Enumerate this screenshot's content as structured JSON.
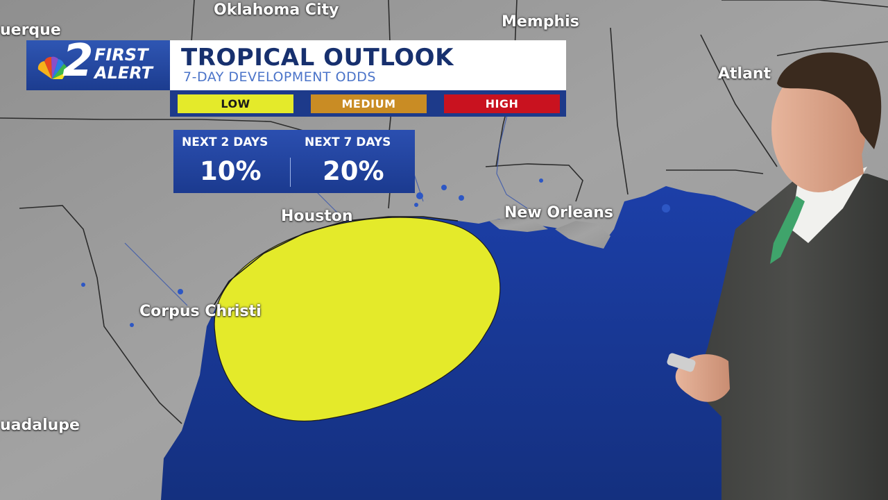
{
  "broadcast": {
    "logo": {
      "number": "2",
      "line1": "FIRST",
      "line2": "ALERT"
    },
    "title": "TROPICAL OUTLOOK",
    "subtitle": "7-DAY DEVELOPMENT ODDS"
  },
  "legend": [
    {
      "label": "LOW",
      "color": "#e4ea2a"
    },
    {
      "label": "MEDIUM",
      "color": "#c98c24"
    },
    {
      "label": "HIGH",
      "color": "#c9121f"
    }
  ],
  "odds": {
    "next_2_days": {
      "label": "NEXT 2 DAYS",
      "value": "10%"
    },
    "next_7_days": {
      "label": "NEXT 7 DAYS",
      "value": "20%"
    }
  },
  "map": {
    "cities": [
      {
        "name": "Oklahoma City"
      },
      {
        "name": "Memphis"
      },
      {
        "name": "uerque"
      },
      {
        "name": "Atlant"
      },
      {
        "name": "Houston"
      },
      {
        "name": "New Orleans"
      },
      {
        "name": "Corpus Christi"
      },
      {
        "name": "uadalupe"
      }
    ],
    "development_area": {
      "category": "LOW",
      "color": "#e4ea2a"
    },
    "colors": {
      "land": "#9c9c9c",
      "water": "#1e3fa6",
      "borders": "#2b2b2b"
    }
  }
}
